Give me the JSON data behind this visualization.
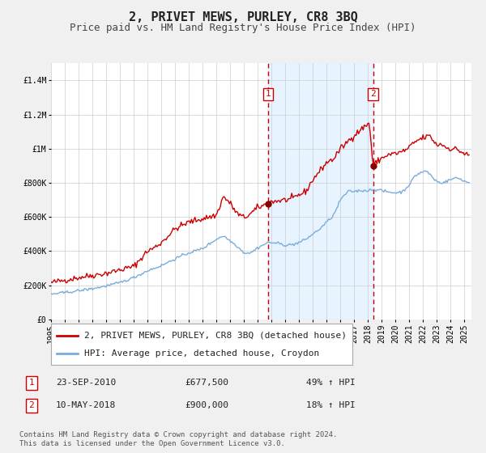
{
  "title": "2, PRIVET MEWS, PURLEY, CR8 3BQ",
  "subtitle": "Price paid vs. HM Land Registry's House Price Index (HPI)",
  "ylim": [
    0,
    1500000
  ],
  "xlim_start": 1995.0,
  "xlim_end": 2025.5,
  "yticks": [
    0,
    200000,
    400000,
    600000,
    800000,
    1000000,
    1200000,
    1400000
  ],
  "ytick_labels": [
    "£0",
    "£200K",
    "£400K",
    "£600K",
    "£800K",
    "£1M",
    "£1.2M",
    "£1.4M"
  ],
  "background_color": "#f0f0f0",
  "plot_bg_color": "#ffffff",
  "grid_color": "#cccccc",
  "red_line_color": "#cc0000",
  "blue_line_color": "#7aaddc",
  "shade_color": "#ddeeff",
  "dashed_line_color": "#cc0000",
  "marker_color": "#880000",
  "sale1_x": 2010.73,
  "sale1_y": 677500,
  "sale2_x": 2018.36,
  "sale2_y": 900000,
  "legend_line1": "2, PRIVET MEWS, PURLEY, CR8 3BQ (detached house)",
  "legend_line2": "HPI: Average price, detached house, Croydon",
  "annotation1_date": "23-SEP-2010",
  "annotation1_price": "£677,500",
  "annotation1_hpi": "49% ↑ HPI",
  "annotation2_date": "10-MAY-2018",
  "annotation2_price": "£900,000",
  "annotation2_hpi": "18% ↑ HPI",
  "footnote": "Contains HM Land Registry data © Crown copyright and database right 2024.\nThis data is licensed under the Open Government Licence v3.0.",
  "title_fontsize": 11,
  "subtitle_fontsize": 9,
  "tick_fontsize": 7,
  "legend_fontsize": 8,
  "annotation_fontsize": 8,
  "footnote_fontsize": 6.5
}
